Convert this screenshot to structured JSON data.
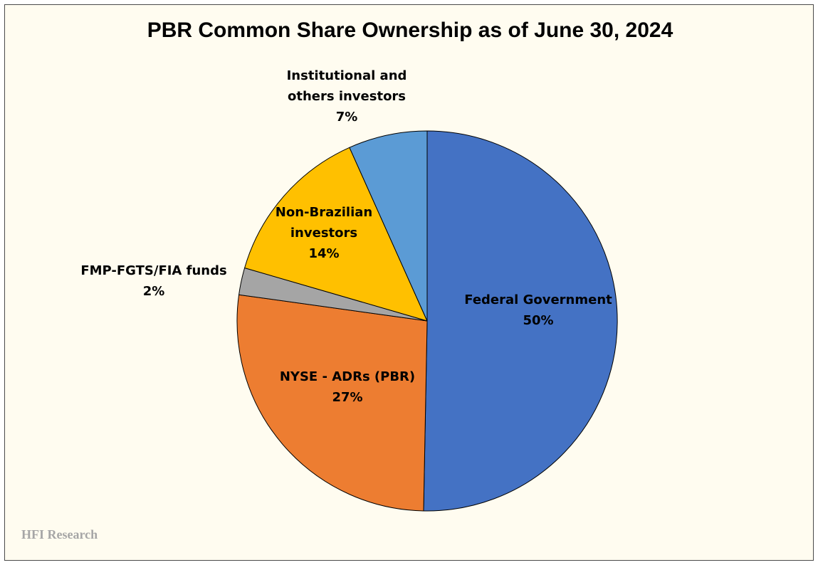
{
  "chart_data": {
    "type": "pie",
    "title": "PBR Common Share Ownership as of June 30, 2024",
    "slices": [
      {
        "label_lines": [
          "Federal Government",
          "50%"
        ],
        "value": 50.3,
        "color": "#4472c4"
      },
      {
        "label_lines": [
          "NYSE - ADRs (PBR)",
          "27%"
        ],
        "value": 26.9,
        "color": "#ed7d31"
      },
      {
        "label_lines": [
          "FMP-FGTS/FIA funds",
          "2%"
        ],
        "value": 2.3,
        "color": "#a5a5a5"
      },
      {
        "label_lines": [
          "Non-Brazilian",
          "investors",
          "14%"
        ],
        "value": 13.8,
        "color": "#ffc000"
      },
      {
        "label_lines": [
          "Institutional and",
          "others investors",
          "7%"
        ],
        "value": 6.7,
        "color": "#5b9bd5"
      }
    ],
    "start_angle": "12 o'clock",
    "direction": "clockwise"
  },
  "watermark": "HFI Research"
}
